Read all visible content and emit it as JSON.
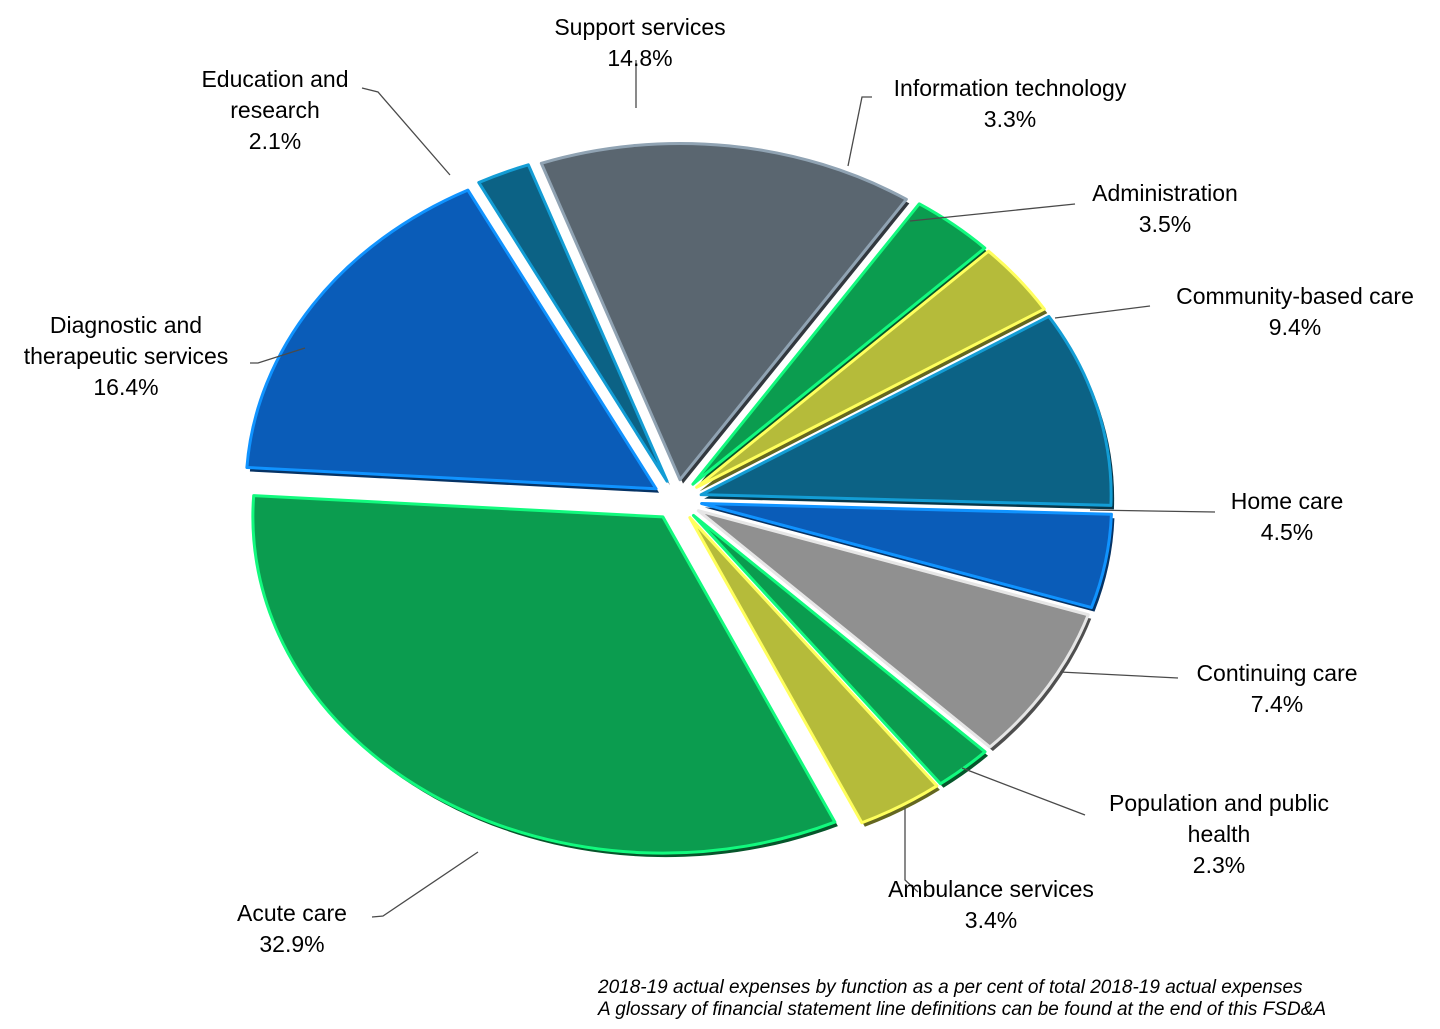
{
  "chart_data": {
    "type": "pie",
    "title": "",
    "slices": [
      {
        "label_lines": [
          "Support services"
        ],
        "value_label": "14.8%",
        "value": 14.8,
        "color": "#5a6670"
      },
      {
        "label_lines": [
          "Information technology"
        ],
        "value_label": "3.3%",
        "value": 3.3,
        "color": "#0b9c4f"
      },
      {
        "label_lines": [
          "Administration"
        ],
        "value_label": "3.5%",
        "value": 3.5,
        "color": "#b5bb3a"
      },
      {
        "label_lines": [
          "Community-based care"
        ],
        "value_label": "9.4%",
        "value": 9.4,
        "color": "#0c6285"
      },
      {
        "label_lines": [
          "Home care"
        ],
        "value_label": "4.5%",
        "value": 4.5,
        "color": "#0a5cb8"
      },
      {
        "label_lines": [
          "Continuing care"
        ],
        "value_label": "7.4%",
        "value": 7.4,
        "color": "#909090"
      },
      {
        "label_lines": [
          "Population and public",
          "health"
        ],
        "value_label": "2.3%",
        "value": 2.3,
        "color": "#0b9c4f"
      },
      {
        "label_lines": [
          "Ambulance services"
        ],
        "value_label": "3.4%",
        "value": 3.4,
        "color": "#b5bb3a"
      },
      {
        "label_lines": [
          "Acute care"
        ],
        "value_label": "32.9%",
        "value": 32.9,
        "color": "#0b9c4f"
      },
      {
        "label_lines": [
          "Diagnostic and",
          "therapeutic services"
        ],
        "value_label": "16.4%",
        "value": 16.4,
        "color": "#0a5cb8"
      },
      {
        "label_lines": [
          "Education and",
          "research"
        ],
        "value_label": "2.1%",
        "value": 2.1,
        "color": "#0c6285"
      }
    ],
    "start_direction": "12 o'clock",
    "order": "clockwise",
    "exploded": true
  },
  "footnote": {
    "line1": "2018-19 actual expenses by function as a per cent of total 2018-19 actual expenses",
    "line2": "A glossary of financial statement line definitions can be found at the end of this FSD&A"
  }
}
